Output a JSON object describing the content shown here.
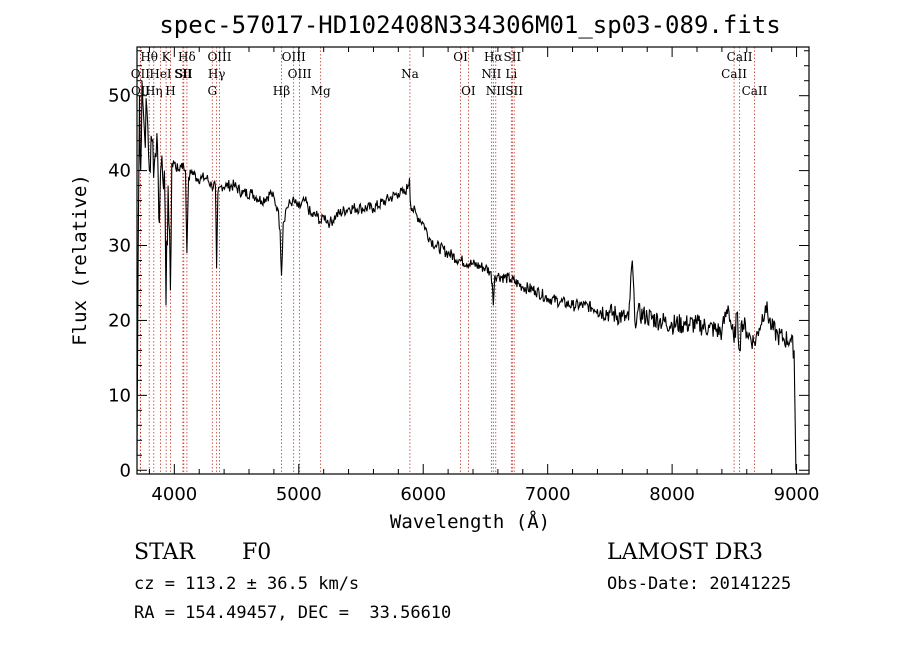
{
  "chart_data": {
    "type": "line",
    "title": "spec-57017-HD102408N334306M01_sp03-089.fits",
    "xlabel": "Wavelength (Å)",
    "ylabel": "Flux (relative)",
    "xlim": [
      3700,
      9100
    ],
    "ylim": [
      -0.5,
      56.5
    ],
    "xticks": [
      4000,
      5000,
      6000,
      7000,
      8000,
      9000
    ],
    "yticks": [
      0,
      10,
      20,
      30,
      40,
      50
    ],
    "series": [
      {
        "name": "flux",
        "x": [
          3700,
          3710,
          3720,
          3730,
          3740,
          3760,
          3780,
          3800,
          3820,
          3840,
          3860,
          3870,
          3880,
          3890,
          3900,
          3920,
          3933,
          3950,
          3968,
          3980,
          4000,
          4030,
          4060,
          4090,
          4101,
          4115,
          4140,
          4180,
          4220,
          4260,
          4300,
          4330,
          4340,
          4350,
          4380,
          4420,
          4480,
          4550,
          4620,
          4700,
          4780,
          4830,
          4850,
          4861,
          4875,
          4900,
          4950,
          5000,
          5050,
          5100,
          5150,
          5180,
          5200,
          5250,
          5300,
          5400,
          5500,
          5600,
          5700,
          5800,
          5850,
          5880,
          5890,
          5895,
          5910,
          5950,
          6000,
          6050,
          6100,
          6200,
          6300,
          6400,
          6500,
          6540,
          6555,
          6563,
          6575,
          6600,
          6700,
          6800,
          6900,
          7000,
          7100,
          7200,
          7300,
          7400,
          7500,
          7600,
          7650,
          7680,
          7700,
          7720,
          7800,
          7900,
          8000,
          8100,
          8200,
          8300,
          8400,
          8450,
          8498,
          8520,
          8542,
          8560,
          8600,
          8662,
          8700,
          8750,
          8800,
          8850,
          8900,
          8950,
          8980,
          8995
        ],
        "y": [
          2,
          30,
          50,
          40,
          52,
          45,
          48,
          40,
          44,
          41,
          45,
          39,
          33,
          40,
          42,
          40,
          22,
          38,
          24,
          41,
          41,
          40,
          41,
          40,
          29,
          39,
          40,
          39,
          39,
          39,
          38,
          38,
          27,
          37,
          38,
          38,
          38,
          37,
          37,
          36,
          37,
          35,
          32,
          26,
          33,
          35,
          36,
          35,
          36,
          34,
          34,
          33,
          34,
          33,
          34,
          35,
          35,
          35,
          36,
          37,
          37,
          38,
          39,
          36,
          35,
          34,
          33,
          31,
          30,
          29,
          28,
          27.5,
          27,
          26.5,
          25,
          22,
          26,
          26,
          25.5,
          24.5,
          24,
          23,
          22.5,
          22,
          22,
          21.5,
          21,
          20.5,
          20,
          28,
          20,
          21,
          20.5,
          20,
          19.5,
          19.5,
          19.5,
          19,
          18.5,
          22,
          17,
          21,
          16,
          20,
          18.5,
          17,
          19,
          22,
          19,
          18,
          17.5,
          17.5,
          16,
          0
        ]
      }
    ],
    "lines": [
      {
        "label": "Hθ",
        "wave": 3798,
        "row": 0
      },
      {
        "label": "OII",
        "wave": 3727,
        "row": 1
      },
      {
        "label": "OII",
        "wave": 3729,
        "row": 2
      },
      {
        "label": "Hη",
        "wave": 3835,
        "row": 2
      },
      {
        "label": "HeI",
        "wave": 3889,
        "row": 1
      },
      {
        "label": "K",
        "wave": 3934,
        "row": 0
      },
      {
        "label": "SII",
        "wave": 4069,
        "row": 1
      },
      {
        "label": "H",
        "wave": 3969,
        "row": 2
      },
      {
        "label": "Hδ",
        "wave": 4101,
        "row": 0
      },
      {
        "label": "SII",
        "wave": 4076,
        "row": 1
      },
      {
        "label": "OIII",
        "wave": 4363,
        "row": 0
      },
      {
        "label": "Hγ",
        "wave": 4340,
        "row": 1
      },
      {
        "label": "G",
        "wave": 4305,
        "row": 2
      },
      {
        "label": "Hβ",
        "wave": 4861,
        "row": 2
      },
      {
        "label": "OIII",
        "wave": 4959,
        "row": 0
      },
      {
        "label": "OIII",
        "wave": 5007,
        "row": 1
      },
      {
        "label": "Mg",
        "wave": 5176,
        "row": 2
      },
      {
        "label": "Na",
        "wave": 5893,
        "row": 1
      },
      {
        "label": "OI",
        "wave": 6300,
        "row": 0
      },
      {
        "label": "OI",
        "wave": 6363,
        "row": 2
      },
      {
        "label": "Hα",
        "wave": 6563,
        "row": 0
      },
      {
        "label": "NII",
        "wave": 6548,
        "row": 1
      },
      {
        "label": "NII",
        "wave": 6583,
        "row": 2
      },
      {
        "label": "SII",
        "wave": 6716,
        "row": 0
      },
      {
        "label": "Li",
        "wave": 6708,
        "row": 1
      },
      {
        "label": "SII",
        "wave": 6731,
        "row": 2
      },
      {
        "label": "CaII",
        "wave": 8542,
        "row": 0
      },
      {
        "label": "CaII",
        "wave": 8498,
        "row": 1
      },
      {
        "label": "CaII",
        "wave": 8662,
        "row": 2
      }
    ]
  },
  "info": {
    "type_label": "STAR",
    "subclass": "F0",
    "survey": "LAMOST DR3",
    "cz": "cz = 113.2 ± 36.5 km/s",
    "obs_date": "Obs-Date: 20141225",
    "coords": "RA = 154.49457, DEC =  33.56610"
  }
}
